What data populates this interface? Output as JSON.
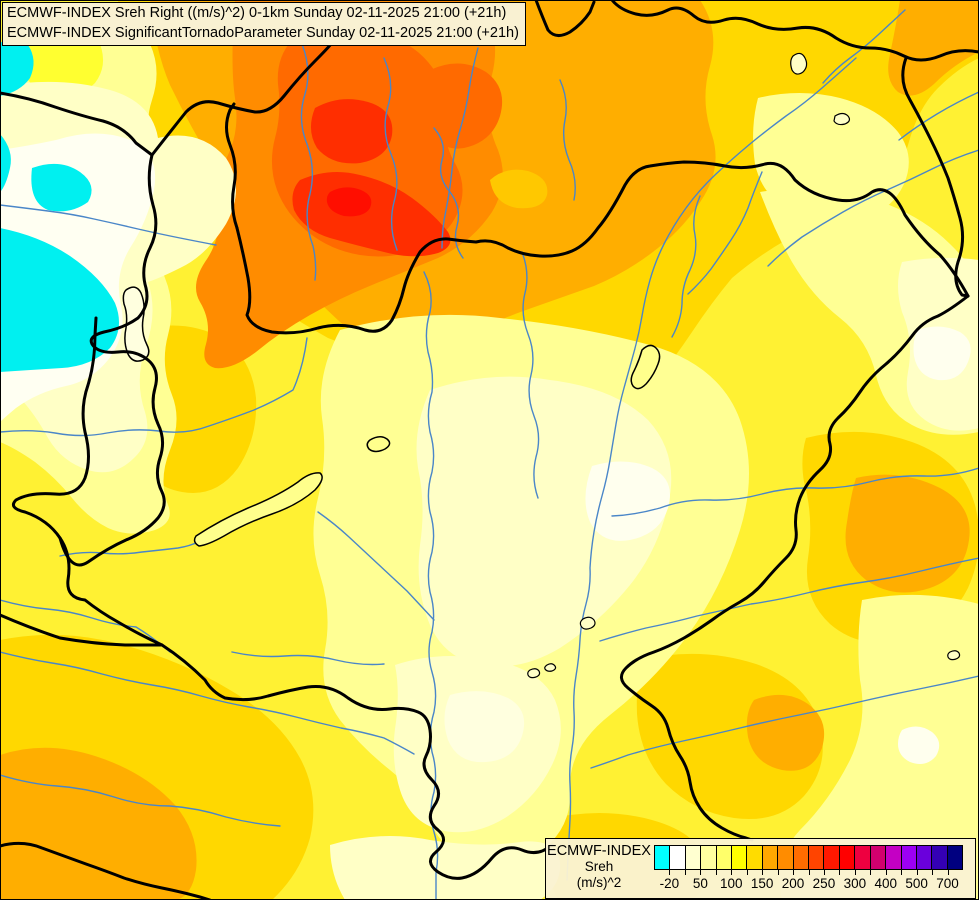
{
  "header": {
    "line1": "ECMWF-INDEX Sreh Right ((m/s)^2) 0-1km Sunday 02-11-2025 21:00 (+21h)",
    "line2": "ECMWF-INDEX SignificantTornadoParameter Sunday 02-11-2025 21:00 (+21h)"
  },
  "legend": {
    "title": "ECMWF-INDEX",
    "subtitle": "Sreh",
    "units": "(m/s)^2",
    "scale": {
      "colors": [
        "#00FFFF",
        "#FFFFFF",
        "#FFFFD0",
        "#FFFFA0",
        "#FFFF6A",
        "#FFFF00",
        "#FFDC00",
        "#FFA800",
        "#FF8C00",
        "#FF6C00",
        "#FF4400",
        "#FF1800",
        "#FF0000",
        "#EE0040",
        "#D2006E",
        "#C400C4",
        "#9C00F4",
        "#6A00DC",
        "#3400B4",
        "#000080"
      ],
      "tick_labels": [
        "-20",
        "50",
        "100",
        "150",
        "200",
        "250",
        "300",
        "400",
        "500",
        "700"
      ]
    }
  },
  "map": {
    "border_color": "#000000",
    "river_color": "#4A86C8",
    "lake_outline_color": "#000000",
    "fill_palette": {
      "cyan": "#00F0F0",
      "white": "#FFFFF2",
      "cream": "#FFFFC6",
      "pale_yellow": "#FFFF94",
      "yellow_base": "#FFF133",
      "gold": "#FFD800",
      "orange": "#FFAE00",
      "dark_orange": "#FF8C00",
      "orange_red": "#FF6A00",
      "red": "#FF2E00",
      "bright_red": "#FF0E00"
    }
  }
}
